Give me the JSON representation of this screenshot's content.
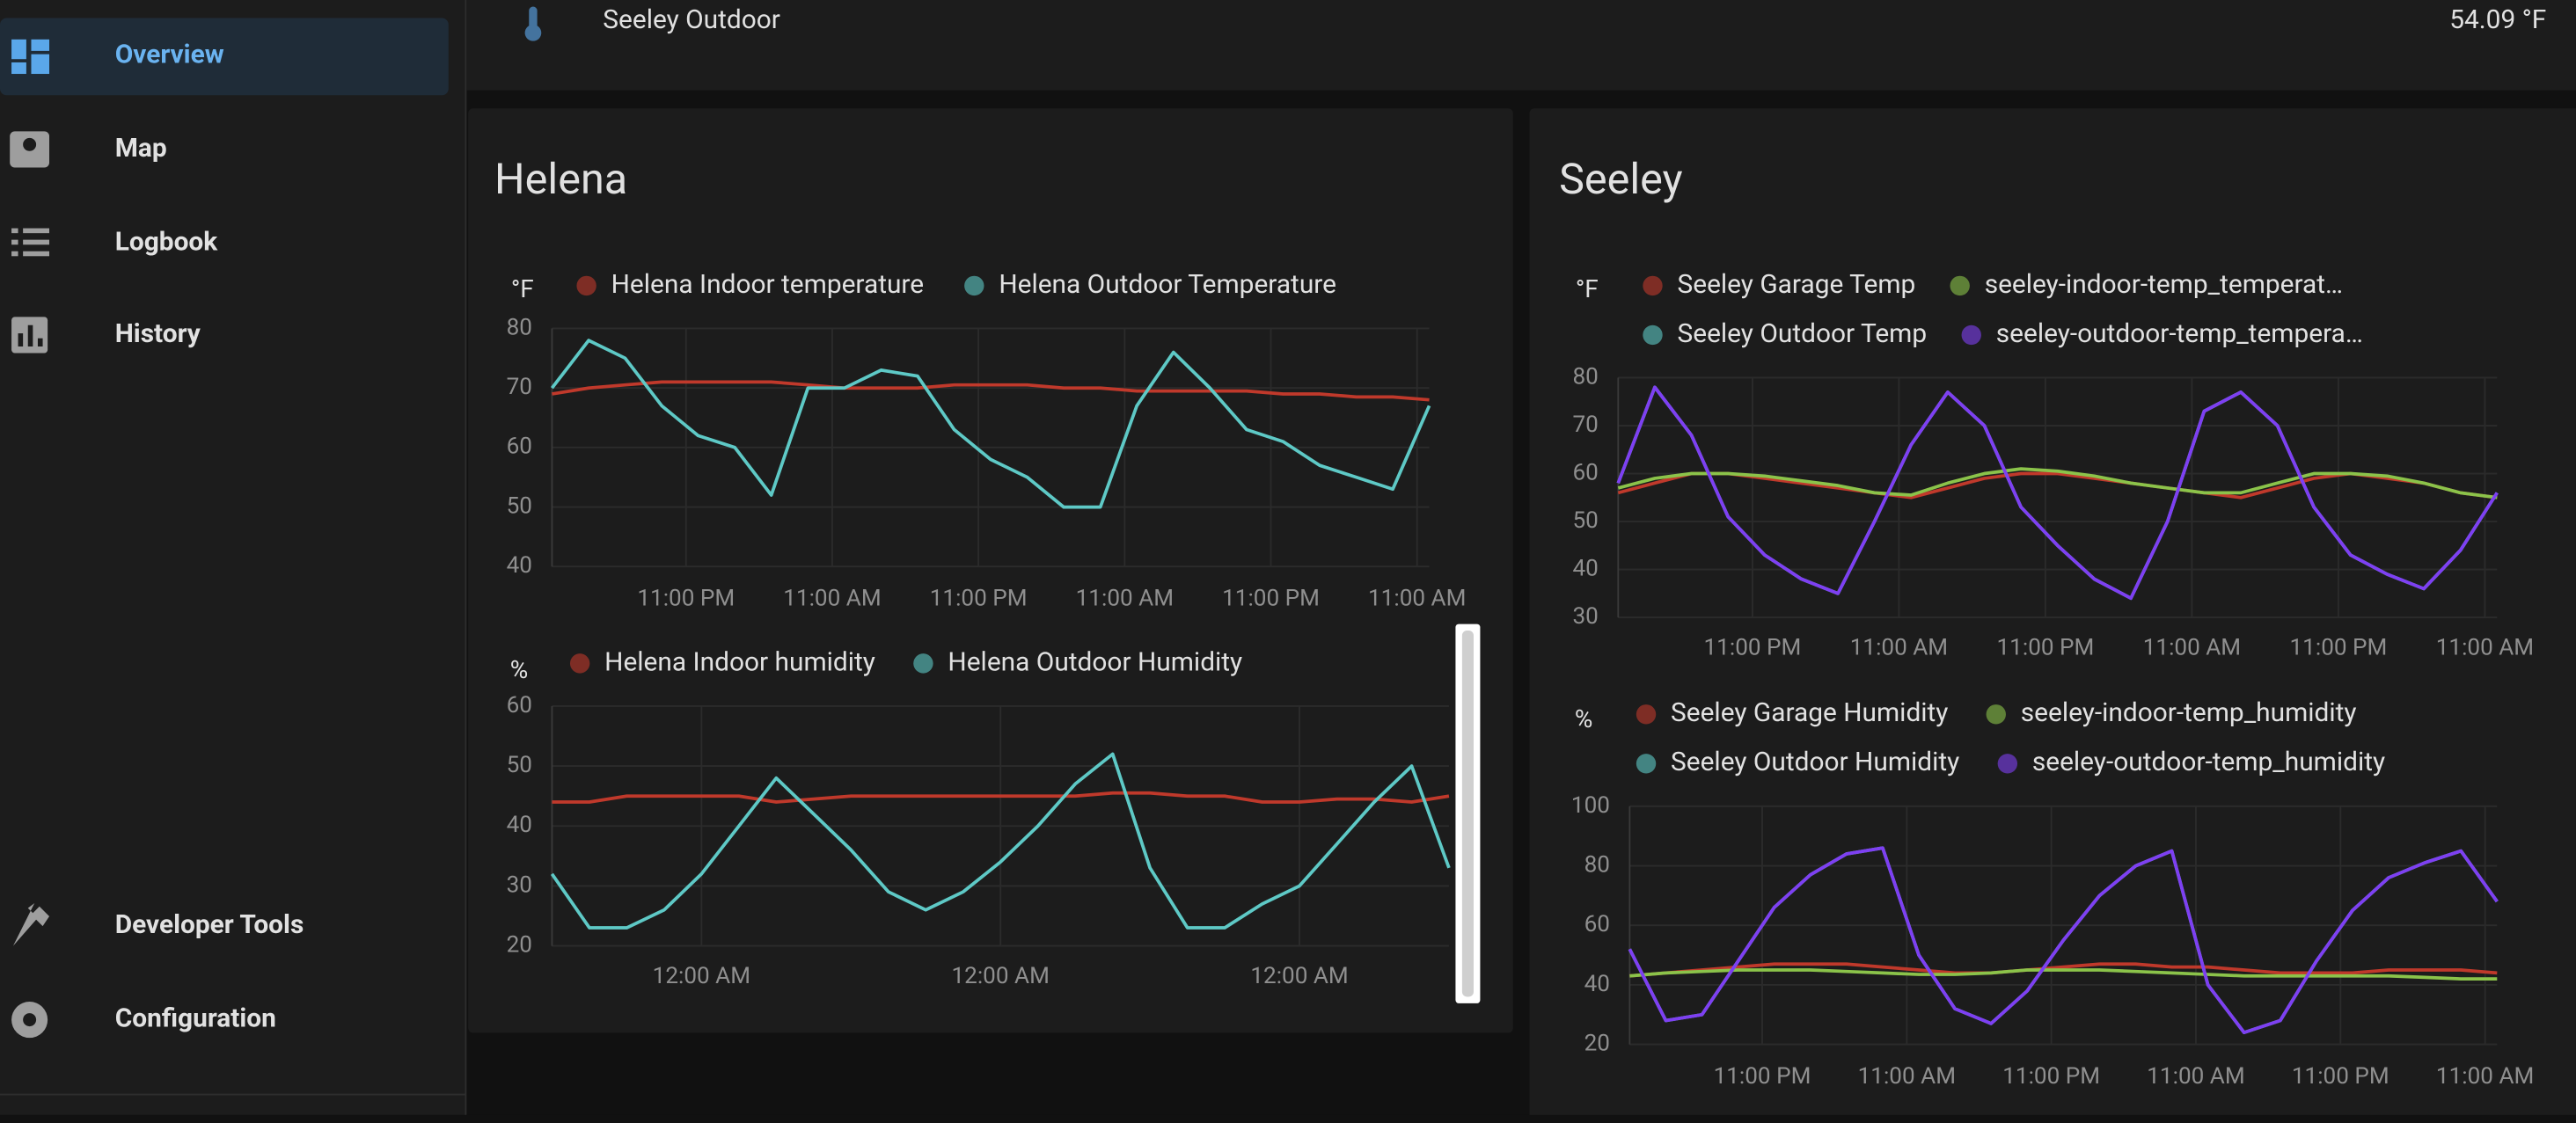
{
  "sidebar": {
    "items": [
      "Overview",
      "Map",
      "Logbook",
      "History",
      "Developer Tools",
      "Configuration"
    ]
  },
  "header_entity": {
    "name": "Seeley Outdoor",
    "state": "54.09 °F"
  },
  "cards": [
    {
      "title": "Helena"
    },
    {
      "title": "Seeley"
    }
  ],
  "chart_data": [
    {
      "type": "line",
      "y_label": "°F",
      "grid": true,
      "x": [
        0,
        3,
        6,
        9,
        12,
        15,
        18,
        21,
        24,
        27,
        30,
        33,
        36,
        39,
        42,
        45,
        48,
        51,
        54,
        57,
        60,
        63,
        66,
        69,
        72
      ],
      "xlim": [
        0,
        72
      ],
      "xticks": [
        {
          "value": 11,
          "label": "11:00 PM"
        },
        {
          "value": 23,
          "label": "11:00 AM"
        },
        {
          "value": 35,
          "label": "11:00 PM"
        },
        {
          "value": 47,
          "label": "11:00 AM"
        },
        {
          "value": 59,
          "label": "11:00 PM"
        },
        {
          "value": 71,
          "label": "11:00 AM"
        }
      ],
      "ylim": [
        40,
        80
      ],
      "yticks": [
        40,
        50,
        60,
        70,
        80
      ],
      "series": [
        {
          "name": "Helena Indoor temperature",
          "color": "#c0392b",
          "values": [
            69,
            70,
            70.5,
            71,
            71,
            71,
            71,
            70.5,
            70,
            70,
            70,
            70.5,
            70.5,
            70.5,
            70,
            70,
            69.5,
            69.5,
            69.5,
            69.5,
            69,
            69,
            68.5,
            68.5,
            68
          ]
        },
        {
          "name": "Helena Outdoor Temperature",
          "color": "#5ec9c6",
          "values": [
            70,
            78,
            75,
            67,
            62,
            60,
            52,
            70,
            70,
            73,
            72,
            63,
            58,
            55,
            50,
            50,
            67,
            76,
            70,
            63,
            61,
            57,
            55,
            53,
            67
          ]
        }
      ]
    },
    {
      "type": "line",
      "y_label": "%",
      "grid": true,
      "x": [
        0,
        3,
        6,
        9,
        12,
        15,
        18,
        21,
        24,
        27,
        30,
        33,
        36,
        39,
        42,
        45,
        48,
        51,
        54,
        57,
        60,
        63,
        66,
        69,
        72
      ],
      "xlim": [
        0,
        72
      ],
      "xticks": [
        {
          "value": 12,
          "label": "12:00 AM"
        },
        {
          "value": 36,
          "label": "12:00 AM"
        },
        {
          "value": 60,
          "label": "12:00 AM"
        }
      ],
      "ylim": [
        20,
        60
      ],
      "yticks": [
        20,
        30,
        40,
        50,
        60
      ],
      "series": [
        {
          "name": "Helena Indoor humidity",
          "color": "#c0392b",
          "values": [
            44,
            44,
            45,
            45,
            45,
            45,
            44,
            44.5,
            45,
            45,
            45,
            45,
            45,
            45,
            45,
            45.5,
            45.5,
            45,
            45,
            44,
            44,
            44.5,
            44.5,
            44,
            45
          ]
        },
        {
          "name": "Helena Outdoor Humidity",
          "color": "#5ec9c6",
          "values": [
            32,
            23,
            23,
            26,
            32,
            40,
            48,
            42,
            36,
            29,
            26,
            29,
            34,
            40,
            47,
            52,
            33,
            23,
            23,
            27,
            30,
            37,
            44,
            50,
            33
          ]
        }
      ]
    },
    {
      "type": "line",
      "y_label": "°F",
      "grid": true,
      "x": [
        0,
        3,
        6,
        9,
        12,
        15,
        18,
        21,
        24,
        27,
        30,
        33,
        36,
        39,
        42,
        45,
        48,
        51,
        54,
        57,
        60,
        63,
        66,
        69,
        72
      ],
      "xlim": [
        0,
        72
      ],
      "xticks": [
        {
          "value": 11,
          "label": "11:00 PM"
        },
        {
          "value": 23,
          "label": "11:00 AM"
        },
        {
          "value": 35,
          "label": "11:00 PM"
        },
        {
          "value": 47,
          "label": "11:00 AM"
        },
        {
          "value": 59,
          "label": "11:00 PM"
        },
        {
          "value": 71,
          "label": "11:00 AM"
        }
      ],
      "ylim": [
        30,
        80
      ],
      "yticks": [
        30,
        40,
        50,
        60,
        70,
        80
      ],
      "series": [
        {
          "name": "Seeley Garage Temp",
          "color": "#c0392b",
          "values": [
            56,
            58,
            60,
            60,
            59,
            58,
            57,
            56,
            55,
            57,
            59,
            60,
            60,
            59,
            58,
            57,
            56,
            55,
            57,
            59,
            60,
            59,
            58,
            56,
            55
          ]
        },
        {
          "name": "seeley-indoor-temp_temperat…",
          "color": "#8bc34a",
          "values": [
            57,
            59,
            60,
            60,
            59.5,
            58.5,
            57.5,
            56,
            55.5,
            58,
            60,
            61,
            60.5,
            59.5,
            58,
            57,
            56,
            56,
            58,
            60,
            60,
            59.5,
            58,
            56,
            55
          ]
        },
        {
          "name": "Seeley Outdoor Temp",
          "color": "#5ec9c6",
          "values": [
            58,
            78,
            68,
            51,
            43,
            38,
            35,
            50,
            66,
            77,
            70,
            53,
            45,
            38,
            34,
            50,
            73,
            77,
            70,
            53,
            43,
            39,
            36,
            44,
            56
          ]
        },
        {
          "name": "seeley-outdoor-temp_tempera…",
          "color": "#7e3ff2",
          "values": [
            58,
            78,
            68,
            51,
            43,
            38,
            35,
            50,
            66,
            77,
            70,
            53,
            45,
            38,
            34,
            50,
            73,
            77,
            70,
            53,
            43,
            39,
            36,
            44,
            56
          ]
        }
      ]
    },
    {
      "type": "line",
      "y_label": "%",
      "grid": true,
      "x": [
        0,
        3,
        6,
        9,
        12,
        15,
        18,
        21,
        24,
        27,
        30,
        33,
        36,
        39,
        42,
        45,
        48,
        51,
        54,
        57,
        60,
        63,
        66,
        69,
        72
      ],
      "xlim": [
        0,
        72
      ],
      "xticks": [
        {
          "value": 11,
          "label": "11:00 PM"
        },
        {
          "value": 23,
          "label": "11:00 AM"
        },
        {
          "value": 35,
          "label": "11:00 PM"
        },
        {
          "value": 47,
          "label": "11:00 AM"
        },
        {
          "value": 59,
          "label": "11:00 PM"
        },
        {
          "value": 71,
          "label": "11:00 AM"
        }
      ],
      "ylim": [
        20,
        100
      ],
      "yticks": [
        20,
        40,
        60,
        80,
        100
      ],
      "series": [
        {
          "name": "Seeley Garage Humidity",
          "color": "#c0392b",
          "values": [
            43,
            44,
            45,
            46,
            47,
            47,
            47,
            46,
            45,
            44,
            44,
            45,
            46,
            47,
            47,
            46,
            46,
            45,
            44,
            44,
            44,
            45,
            45,
            45,
            44
          ]
        },
        {
          "name": "seeley-indoor-temp_humidity",
          "color": "#8bc34a",
          "values": [
            43,
            44,
            44.5,
            45,
            45,
            45,
            44.5,
            44,
            43.5,
            43.5,
            44,
            45,
            45,
            45,
            44.5,
            44,
            43.5,
            43,
            43,
            43,
            43,
            43,
            42.5,
            42,
            42
          ]
        },
        {
          "name": "Seeley Outdoor Humidity",
          "color": "#5ec9c6",
          "values": [
            52,
            28,
            30,
            48,
            66,
            77,
            84,
            86,
            50,
            32,
            27,
            38,
            55,
            70,
            80,
            85,
            40,
            24,
            28,
            48,
            65,
            76,
            81,
            85,
            68
          ]
        },
        {
          "name": "seeley-outdoor-temp_humidity",
          "color": "#7e3ff2",
          "values": [
            52,
            28,
            30,
            48,
            66,
            77,
            84,
            86,
            50,
            32,
            27,
            38,
            55,
            70,
            80,
            85,
            40,
            24,
            28,
            48,
            65,
            76,
            81,
            85,
            68
          ]
        }
      ]
    }
  ]
}
